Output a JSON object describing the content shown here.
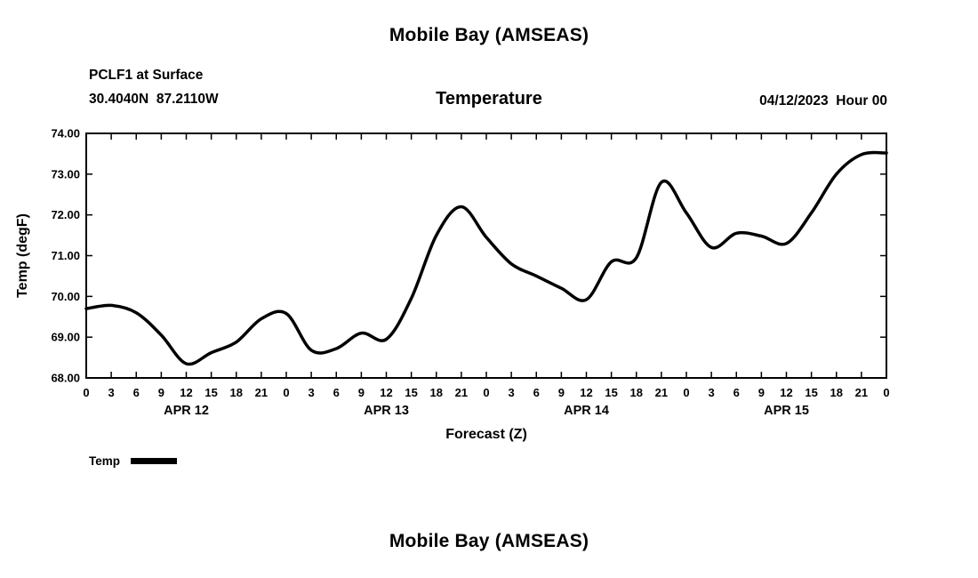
{
  "chart_data": {
    "type": "line",
    "title": "Mobile Bay (AMSEAS)",
    "station": "PCLF1 at Surface",
    "location": "30.4040N  87.2110W",
    "panel_title": "Temperature",
    "run_label": "04/12/2023  Hour 00",
    "xlabel": "Forecast (Z)",
    "ylabel": "Temp (degF)",
    "ylim": [
      68.0,
      74.0
    ],
    "y_tick_step": 1.0,
    "y_tick_labels": [
      "68.00",
      "69.00",
      "70.00",
      "71.00",
      "72.00",
      "73.00",
      "74.00"
    ],
    "x_hours_span": 96,
    "x_tick_interval": 3,
    "x_tick_cycle_labels": [
      "0",
      "3",
      "6",
      "9",
      "12",
      "15",
      "18",
      "21"
    ],
    "day_labels": [
      "APR 12",
      "APR 13",
      "APR 14",
      "APR 15"
    ],
    "legend": [
      {
        "label": "Temp",
        "color": "#000000"
      }
    ],
    "grid": false,
    "legend_position": "bottom-left",
    "x": [
      0,
      3,
      6,
      9,
      12,
      15,
      18,
      21,
      24,
      27,
      30,
      33,
      36,
      39,
      42,
      45,
      48,
      51,
      54,
      57,
      60,
      63,
      66,
      69,
      72,
      75,
      78,
      81,
      84,
      87,
      90,
      93,
      96
    ],
    "series": [
      {
        "name": "Temp",
        "color": "#000000",
        "values": [
          69.7,
          69.78,
          69.6,
          69.05,
          68.35,
          68.62,
          68.88,
          69.45,
          69.58,
          68.68,
          68.72,
          69.1,
          68.95,
          69.95,
          71.5,
          72.2,
          71.45,
          70.8,
          70.5,
          70.2,
          69.92,
          70.85,
          70.95,
          72.8,
          72.05,
          71.2,
          71.55,
          71.48,
          71.3,
          72.05,
          73.0,
          73.48,
          73.52
        ]
      }
    ]
  },
  "next_chart": {
    "title": "Mobile Bay (AMSEAS)"
  }
}
